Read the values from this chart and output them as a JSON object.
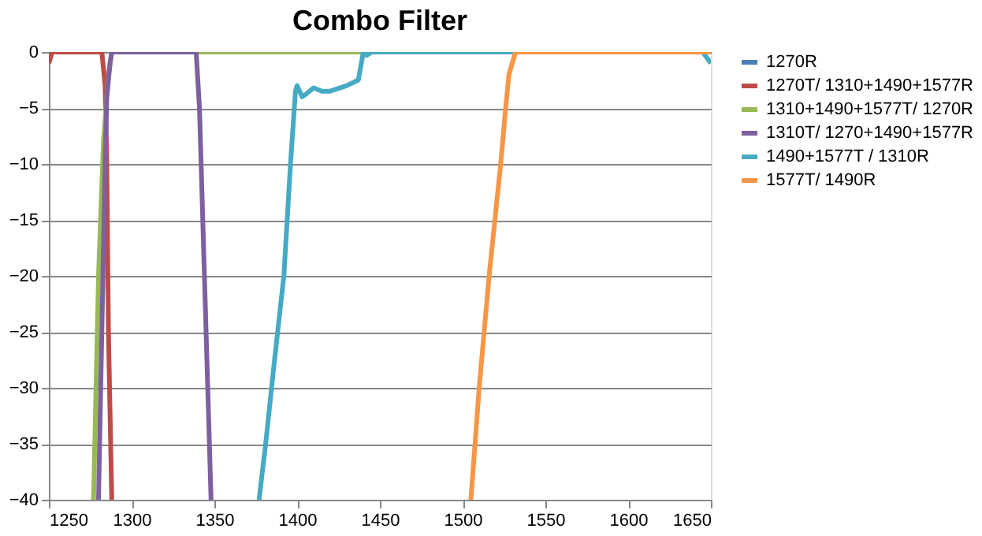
{
  "chart_data": {
    "type": "line",
    "title": "Combo Filter",
    "xlim": [
      1250,
      1650
    ],
    "xticks": [
      1250,
      1300,
      1350,
      1400,
      1450,
      1500,
      1550,
      1600,
      1650
    ],
    "ylim": [
      -40,
      0
    ],
    "yticks": [
      -40,
      -35,
      -30,
      -25,
      -20,
      -15,
      -10,
      -5,
      0
    ],
    "grid": "y",
    "legend": "right",
    "marker": "none",
    "line_style": "solid",
    "series": [
      {
        "name": "1270R",
        "color": "#4a7ebb"
      },
      {
        "name": "1270T/ 1310+1490+1577R",
        "color": "#be4b48",
        "x": [
          1250,
          1252,
          1282,
          1284,
          1285,
          1286,
          1288
        ],
        "values": [
          -1,
          0,
          0,
          -3,
          -10,
          -25,
          -40
        ]
      },
      {
        "name": "1310+1490+1577T/ 1270R",
        "color": "#98b954",
        "x": [
          1277,
          1280,
          1283,
          1286,
          1288,
          1650
        ],
        "values": [
          -40,
          -20,
          -8,
          -2,
          0,
          0
        ]
      },
      {
        "name": "1310T/ 1270+1490+1577R",
        "color": "#7d60a0",
        "x": [
          1280,
          1282,
          1284,
          1285,
          1287,
          1288,
          1339,
          1341,
          1344,
          1348
        ],
        "values": [
          -40,
          -25,
          -10,
          -4,
          -1,
          0,
          0,
          -5,
          -20,
          -40
        ]
      },
      {
        "name": "1490+1577T / 1310R",
        "color": "#46aac5",
        "x": [
          1377,
          1381,
          1386,
          1392,
          1396,
          1399,
          1400,
          1403,
          1405,
          1410,
          1415,
          1420,
          1430,
          1437,
          1440,
          1442,
          1445,
          1645,
          1650
        ],
        "values": [
          -40,
          -35,
          -28,
          -20,
          -10,
          -3.5,
          -3,
          -4,
          -3.8,
          -3.2,
          -3.5,
          -3.5,
          -3,
          -2.5,
          0,
          -0.3,
          0,
          0,
          -1
        ]
      },
      {
        "name": "1577T/ 1490R",
        "color": "#f79646",
        "x": [
          1505,
          1510,
          1516,
          1523,
          1526,
          1528,
          1532,
          1650
        ],
        "values": [
          -40,
          -30,
          -20,
          -10,
          -5,
          -2,
          0,
          0
        ]
      }
    ]
  }
}
